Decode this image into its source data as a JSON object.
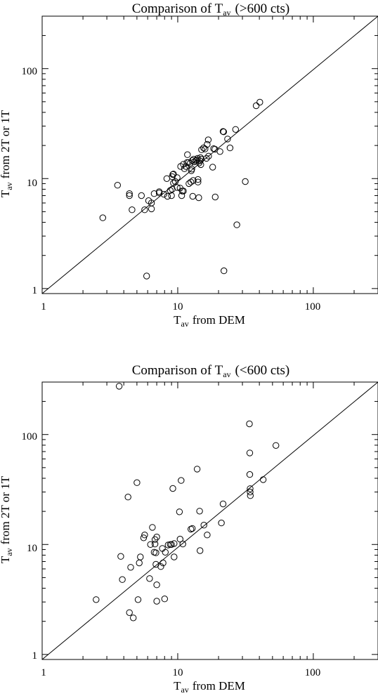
{
  "chart_data": [
    {
      "type": "scatter",
      "title": "Comparison of T",
      "title_sub": "av",
      "title_suffix": "(>600 cts)",
      "xlabel": "T",
      "xlabel_sub": "av",
      "xlabel_suffix": "from DEM",
      "ylabel": "T",
      "ylabel_sub": "av",
      "ylabel_suffix": "from 2T or 1T",
      "xscale": "log",
      "yscale": "log",
      "xlim": [
        1,
        300
      ],
      "ylim": [
        0.9,
        300
      ],
      "xticks": [
        1,
        10,
        100
      ],
      "xtick_labels": [
        "1",
        "10",
        "100"
      ],
      "yticks": [
        1,
        10,
        100
      ],
      "ytick_labels": [
        "1",
        "10",
        "100"
      ],
      "reference_line": "y = x",
      "grid": false,
      "points": [
        {
          "x": 2.8,
          "y": 4.4
        },
        {
          "x": 3.6,
          "y": 8.7
        },
        {
          "x": 4.4,
          "y": 7.3
        },
        {
          "x": 4.4,
          "y": 7.0
        },
        {
          "x": 4.6,
          "y": 5.2
        },
        {
          "x": 5.4,
          "y": 7.0
        },
        {
          "x": 5.7,
          "y": 5.2
        },
        {
          "x": 6.1,
          "y": 6.3
        },
        {
          "x": 6.4,
          "y": 6.0
        },
        {
          "x": 6.4,
          "y": 5.3
        },
        {
          "x": 6.7,
          "y": 7.3
        },
        {
          "x": 7.3,
          "y": 7.4
        },
        {
          "x": 7.3,
          "y": 7.6
        },
        {
          "x": 7.9,
          "y": 7.2
        },
        {
          "x": 8.3,
          "y": 10.0
        },
        {
          "x": 8.4,
          "y": 6.9
        },
        {
          "x": 8.8,
          "y": 7.8
        },
        {
          "x": 9.0,
          "y": 7.0
        },
        {
          "x": 9.1,
          "y": 8.0
        },
        {
          "x": 9.1,
          "y": 10.4
        },
        {
          "x": 9.2,
          "y": 10.9
        },
        {
          "x": 9.3,
          "y": 11.0
        },
        {
          "x": 9.3,
          "y": 9.1
        },
        {
          "x": 9.6,
          "y": 9.4
        },
        {
          "x": 9.9,
          "y": 10.2
        },
        {
          "x": 9.9,
          "y": 8.3
        },
        {
          "x": 10.4,
          "y": 8.2
        },
        {
          "x": 10.5,
          "y": 12.9
        },
        {
          "x": 10.7,
          "y": 7.0
        },
        {
          "x": 10.8,
          "y": 7.7
        },
        {
          "x": 11.0,
          "y": 13.5
        },
        {
          "x": 11.0,
          "y": 7.7
        },
        {
          "x": 11.2,
          "y": 12.3
        },
        {
          "x": 11.5,
          "y": 12.9
        },
        {
          "x": 11.7,
          "y": 14.0
        },
        {
          "x": 11.8,
          "y": 16.5
        },
        {
          "x": 12.0,
          "y": 14.0
        },
        {
          "x": 12.1,
          "y": 9.0
        },
        {
          "x": 12.3,
          "y": 13.7
        },
        {
          "x": 12.5,
          "y": 9.3
        },
        {
          "x": 12.6,
          "y": 11.8
        },
        {
          "x": 12.7,
          "y": 12.2
        },
        {
          "x": 12.8,
          "y": 14.6
        },
        {
          "x": 12.9,
          "y": 6.9
        },
        {
          "x": 13.0,
          "y": 9.6
        },
        {
          "x": 13.1,
          "y": 15.0
        },
        {
          "x": 13.2,
          "y": 14.2
        },
        {
          "x": 13.6,
          "y": 14.5
        },
        {
          "x": 13.8,
          "y": 14.8
        },
        {
          "x": 14.0,
          "y": 15.3
        },
        {
          "x": 14.1,
          "y": 9.3
        },
        {
          "x": 14.1,
          "y": 9.8
        },
        {
          "x": 14.3,
          "y": 6.7
        },
        {
          "x": 14.4,
          "y": 13.9
        },
        {
          "x": 14.6,
          "y": 14.5
        },
        {
          "x": 14.7,
          "y": 15.5
        },
        {
          "x": 14.8,
          "y": 13.4
        },
        {
          "x": 14.9,
          "y": 15.0
        },
        {
          "x": 15.0,
          "y": 18.3
        },
        {
          "x": 15.5,
          "y": 19.0
        },
        {
          "x": 15.9,
          "y": 18.6
        },
        {
          "x": 16.3,
          "y": 15.3
        },
        {
          "x": 16.5,
          "y": 20.5
        },
        {
          "x": 16.8,
          "y": 22.5
        },
        {
          "x": 16.9,
          "y": 16.0
        },
        {
          "x": 18.1,
          "y": 12.7
        },
        {
          "x": 18.4,
          "y": 18.7
        },
        {
          "x": 18.8,
          "y": 18.5
        },
        {
          "x": 18.9,
          "y": 6.8
        },
        {
          "x": 20.5,
          "y": 17.6
        },
        {
          "x": 21.6,
          "y": 26.8
        },
        {
          "x": 21.8,
          "y": 26.6
        },
        {
          "x": 21.9,
          "y": 1.45
        },
        {
          "x": 23.3,
          "y": 22.9
        },
        {
          "x": 24.3,
          "y": 19.0
        },
        {
          "x": 26.7,
          "y": 28.0
        },
        {
          "x": 27.3,
          "y": 3.8
        },
        {
          "x": 31.5,
          "y": 9.4
        },
        {
          "x": 37.9,
          "y": 46.0
        },
        {
          "x": 40.3,
          "y": 49.5
        },
        {
          "x": 5.9,
          "y": 1.3
        }
      ]
    },
    {
      "type": "scatter",
      "title": "Comparison of T",
      "title_sub": "av",
      "title_suffix": "(<600 cts)",
      "xlabel": "T",
      "xlabel_sub": "av",
      "xlabel_suffix": "from DEM",
      "ylabel": "T",
      "ylabel_sub": "av",
      "ylabel_suffix": "from 2T or 1T",
      "xscale": "log",
      "yscale": "log",
      "xlim": [
        1,
        300
      ],
      "ylim": [
        0.9,
        300
      ],
      "xticks": [
        1,
        10,
        100
      ],
      "xtick_labels": [
        "1",
        "10",
        "100"
      ],
      "yticks": [
        1,
        10,
        100
      ],
      "ytick_labels": [
        "1",
        "10",
        "100"
      ],
      "reference_line": "y = x",
      "grid": false,
      "points": [
        {
          "x": 3.7,
          "y": 275
        },
        {
          "x": 2.5,
          "y": 3.15
        },
        {
          "x": 3.8,
          "y": 7.8
        },
        {
          "x": 3.9,
          "y": 4.8
        },
        {
          "x": 4.3,
          "y": 27.0
        },
        {
          "x": 4.4,
          "y": 2.4
        },
        {
          "x": 4.5,
          "y": 6.2
        },
        {
          "x": 4.7,
          "y": 2.15
        },
        {
          "x": 5.0,
          "y": 36.5
        },
        {
          "x": 5.1,
          "y": 3.15
        },
        {
          "x": 5.2,
          "y": 6.8
        },
        {
          "x": 5.3,
          "y": 7.7
        },
        {
          "x": 5.6,
          "y": 11.5
        },
        {
          "x": 5.7,
          "y": 12.2
        },
        {
          "x": 6.2,
          "y": 4.9
        },
        {
          "x": 6.3,
          "y": 10.0
        },
        {
          "x": 6.5,
          "y": 14.3
        },
        {
          "x": 6.7,
          "y": 8.5
        },
        {
          "x": 6.8,
          "y": 10.1
        },
        {
          "x": 6.8,
          "y": 11.1
        },
        {
          "x": 6.9,
          "y": 8.4
        },
        {
          "x": 6.9,
          "y": 6.6
        },
        {
          "x": 7.0,
          "y": 11.7
        },
        {
          "x": 7.0,
          "y": 4.3
        },
        {
          "x": 7.0,
          "y": 3.05
        },
        {
          "x": 7.5,
          "y": 6.3
        },
        {
          "x": 7.7,
          "y": 9.2
        },
        {
          "x": 7.8,
          "y": 6.8
        },
        {
          "x": 8.0,
          "y": 3.2
        },
        {
          "x": 8.1,
          "y": 8.5
        },
        {
          "x": 8.5,
          "y": 9.9
        },
        {
          "x": 8.8,
          "y": 10.0
        },
        {
          "x": 9.0,
          "y": 10.0
        },
        {
          "x": 9.2,
          "y": 32.3
        },
        {
          "x": 9.4,
          "y": 10.2
        },
        {
          "x": 9.4,
          "y": 7.7
        },
        {
          "x": 10.3,
          "y": 19.8
        },
        {
          "x": 10.4,
          "y": 11.2
        },
        {
          "x": 10.6,
          "y": 38.2
        },
        {
          "x": 10.9,
          "y": 10.1
        },
        {
          "x": 12.5,
          "y": 13.8
        },
        {
          "x": 12.8,
          "y": 14.0
        },
        {
          "x": 13.9,
          "y": 48.5
        },
        {
          "x": 14.5,
          "y": 20.1
        },
        {
          "x": 14.6,
          "y": 8.8
        },
        {
          "x": 15.6,
          "y": 15.0
        },
        {
          "x": 16.5,
          "y": 12.2
        },
        {
          "x": 21.0,
          "y": 15.7
        },
        {
          "x": 21.6,
          "y": 23.4
        },
        {
          "x": 33.8,
          "y": 125
        },
        {
          "x": 34.0,
          "y": 68.0
        },
        {
          "x": 34.0,
          "y": 43.3
        },
        {
          "x": 34.2,
          "y": 32.2
        },
        {
          "x": 34.2,
          "y": 30.0
        },
        {
          "x": 34.3,
          "y": 27.8
        },
        {
          "x": 42.7,
          "y": 38.9
        },
        {
          "x": 53.0,
          "y": 79.5
        }
      ]
    }
  ]
}
